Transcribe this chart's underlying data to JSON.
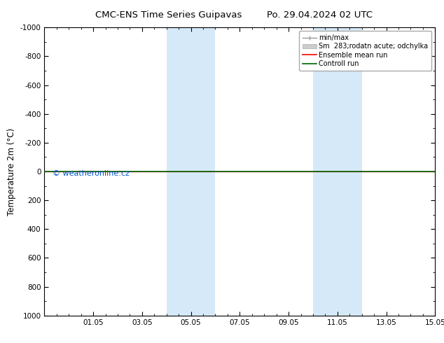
{
  "title_left": "CMC-ENS Time Series Guipavas",
  "title_right": "Po. 29.04.2024 02 UTC",
  "ylabel": "Temperature 2m (°C)",
  "watermark": "© weatheronline.cz",
  "ylim_top": -1000,
  "ylim_bottom": 1000,
  "y_ticks": [
    -1000,
    -800,
    -600,
    -400,
    -200,
    0,
    200,
    400,
    600,
    800,
    1000
  ],
  "x_tick_positions": [
    2,
    4,
    6,
    8,
    10,
    12,
    14,
    16
  ],
  "x_ticks_labels": [
    "01.05",
    "03.05",
    "05.05",
    "07.05",
    "09.05",
    "11.05",
    "13.05",
    "15.05"
  ],
  "shaded_bands": [
    {
      "x_start": 5.0,
      "x_end": 7.0,
      "color": "#d6e9f8"
    },
    {
      "x_start": 11.0,
      "x_end": 13.0,
      "color": "#d6e9f8"
    }
  ],
  "ensemble_mean_color": "#ff0000",
  "control_run_color": "#006400",
  "min_max_color": "#999999",
  "spread_color": "#cccccc",
  "line_y": 0,
  "background_color": "#ffffff",
  "plot_bg_color": "#ffffff",
  "tick_label_fontsize": 7.5,
  "axis_label_fontsize": 8.5,
  "title_fontsize": 9.5,
  "watermark_color": "#0055cc",
  "watermark_fontsize": 8
}
